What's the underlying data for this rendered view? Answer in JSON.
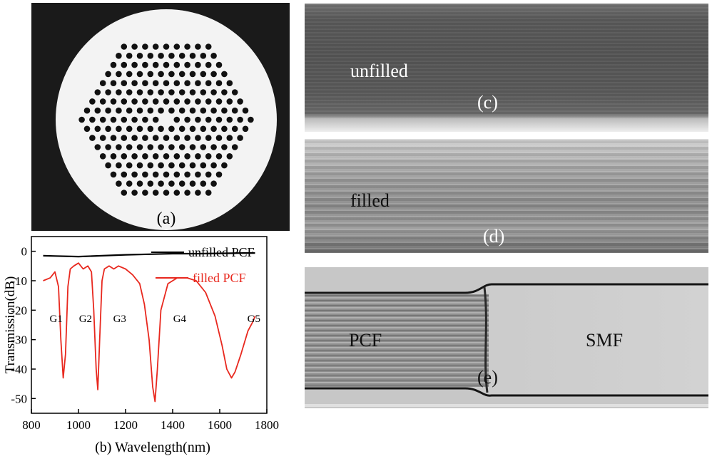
{
  "panel_a": {
    "label": "(a)"
  },
  "panel_b": {
    "caption": "(b) Wavelength(nm)",
    "chart_data": {
      "type": "line",
      "ylabel": "Transmission(dB)",
      "xlim": [
        800,
        1800
      ],
      "ylim": [
        -55,
        5
      ],
      "xticks": [
        "800",
        "1000",
        "1200",
        "1400",
        "1600",
        "1800"
      ],
      "yticks": [
        "0",
        "-10",
        "-20",
        "-30",
        "-40",
        "-50"
      ],
      "legend_position": "top-right",
      "series": [
        {
          "name": "unfilled PCF",
          "color": "#000000",
          "x": [
            850,
            900,
            1000,
            1100,
            1200,
            1300,
            1400,
            1500,
            1600,
            1700,
            1750
          ],
          "y": [
            -1.5,
            -1.6,
            -1.8,
            -1.5,
            -1.2,
            -1,
            -0.8,
            -0.8,
            -0.7,
            -0.6,
            -0.6
          ]
        },
        {
          "name": "filled PCF",
          "color": "#e8281e",
          "x": [
            850,
            880,
            900,
            915,
            925,
            935,
            945,
            955,
            965,
            980,
            1000,
            1020,
            1040,
            1055,
            1065,
            1075,
            1082,
            1090,
            1100,
            1110,
            1130,
            1150,
            1170,
            1200,
            1230,
            1260,
            1280,
            1300,
            1315,
            1325,
            1335,
            1350,
            1380,
            1420,
            1460,
            1500,
            1540,
            1580,
            1610,
            1630,
            1650,
            1665,
            1690,
            1720,
            1740,
            1750
          ],
          "y": [
            -10,
            -9,
            -7,
            -12,
            -30,
            -43,
            -35,
            -12,
            -6,
            -5,
            -4,
            -6,
            -5,
            -7,
            -20,
            -40,
            -47,
            -30,
            -10,
            -6,
            -5,
            -6,
            -5,
            -6,
            -8,
            -11,
            -18,
            -30,
            -46,
            -51,
            -40,
            -20,
            -11,
            -9,
            -9,
            -10,
            -14,
            -22,
            -32,
            -40,
            -43,
            -41,
            -35,
            -27,
            -24,
            -22
          ]
        }
      ],
      "annotations": [
        "G1",
        "G2",
        "G3",
        "G4",
        "G5"
      ]
    }
  },
  "panel_c": {
    "text": "unfilled",
    "label": "(c)"
  },
  "panel_d": {
    "text": "filled",
    "label": "(d)"
  },
  "panel_e": {
    "text_left": "PCF",
    "text_right": "SMF",
    "label": "(e)"
  }
}
